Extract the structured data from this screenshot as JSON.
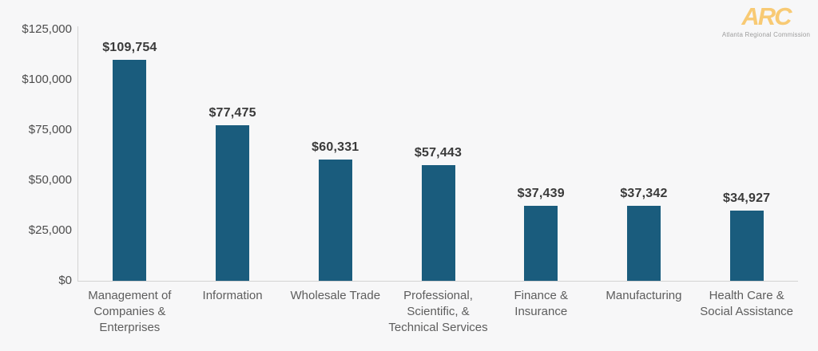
{
  "logo": {
    "text": "ARC",
    "tagline": "Atlanta Regional Commission",
    "color": "#f8ca74",
    "tagline_color": "#9e9e9e"
  },
  "chart_data": {
    "type": "bar",
    "title": "",
    "xlabel": "",
    "ylabel": "",
    "categories": [
      "Management of\nCompanies &\nEnterprises",
      "Information",
      "Wholesale Trade",
      "Professional,\nScientific, &\nTechnical Services",
      "Finance &\nInsurance",
      "Manufacturing",
      "Health Care &\nSocial Assistance"
    ],
    "values": [
      109754,
      77475,
      60331,
      57443,
      37439,
      37342,
      34927
    ],
    "value_labels": [
      "$109,754",
      "$77,475",
      "$60,331",
      "$57,443",
      "$37,439",
      "$37,342",
      "$34,927"
    ],
    "ylim": [
      0,
      125000
    ],
    "ytick_step": 25000,
    "ytick_labels": [
      "$0",
      "$25,000",
      "$50,000",
      "$75,000",
      "$100,000",
      "$125,000"
    ],
    "grid": false,
    "legend": "none",
    "bar_color": "#1a5c7d",
    "value_label_color": "#3a3a3a",
    "category_label_color": "#5d5d5d",
    "ytick_label_color": "#4c4c4c",
    "axis_line_color": "#d3d3d3",
    "background_color": "#f7f7f8"
  }
}
